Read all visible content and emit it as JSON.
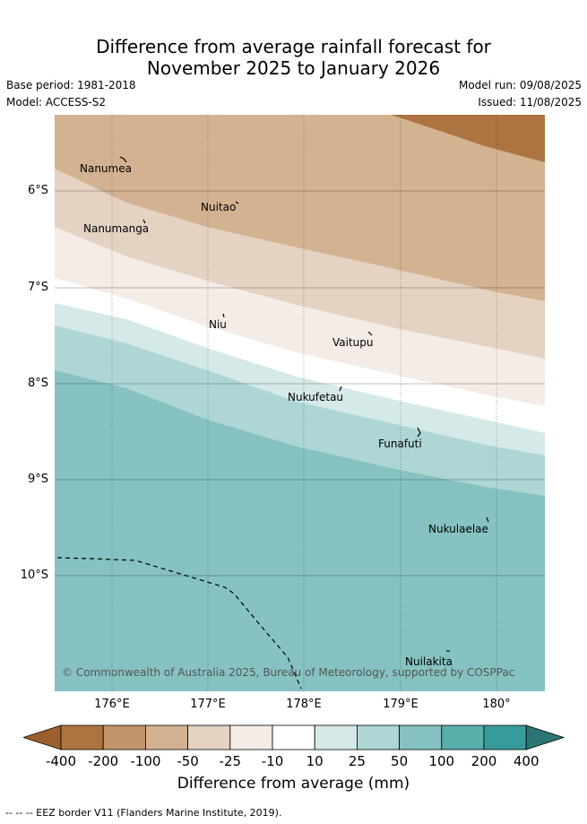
{
  "title_line1": "Difference from average rainfall forecast for",
  "title_line2": "November 2025 to January 2026",
  "base_period": "Base period: 1981-2018",
  "model": "Model: ACCESS-S2",
  "model_run": "Model run: 09/08/2025",
  "issued": "Issued: 11/08/2025",
  "latitudes": [
    "6°S",
    "7°S",
    "8°S",
    "9°S",
    "10°S"
  ],
  "longitudes": [
    "176°E",
    "177°E",
    "178°E",
    "179°E",
    "180°"
  ],
  "places": [
    "Nanumea",
    "Nuitao",
    "Nanumanga",
    "Niu",
    "Vaitupu",
    "Nukufetau",
    "Funafuti",
    "Nukulaelae",
    "Nuilakita"
  ],
  "copyright": "© Commonwealth of Australia 2025, Bureau of Meteorology, supported by COSPPac",
  "legend": {
    "labels": [
      "-400",
      "-200",
      "-100",
      "-50",
      "-25",
      "-10",
      "10",
      "25",
      "50",
      "100",
      "200",
      "400"
    ],
    "colors": [
      "#9c6030",
      "#ad7441",
      "#c1956b",
      "#d3b292",
      "#e4d2c2",
      "#f4ece7",
      "#ffffff",
      "#d5e9e8",
      "#add6d5",
      "#85c2c1",
      "#5aaeac",
      "#369c9b",
      "#2b7575"
    ],
    "title": "Difference from average (mm)"
  },
  "footer": "--  --  -- EEZ border V11 (Flanders Marine Institute, 2019)."
}
